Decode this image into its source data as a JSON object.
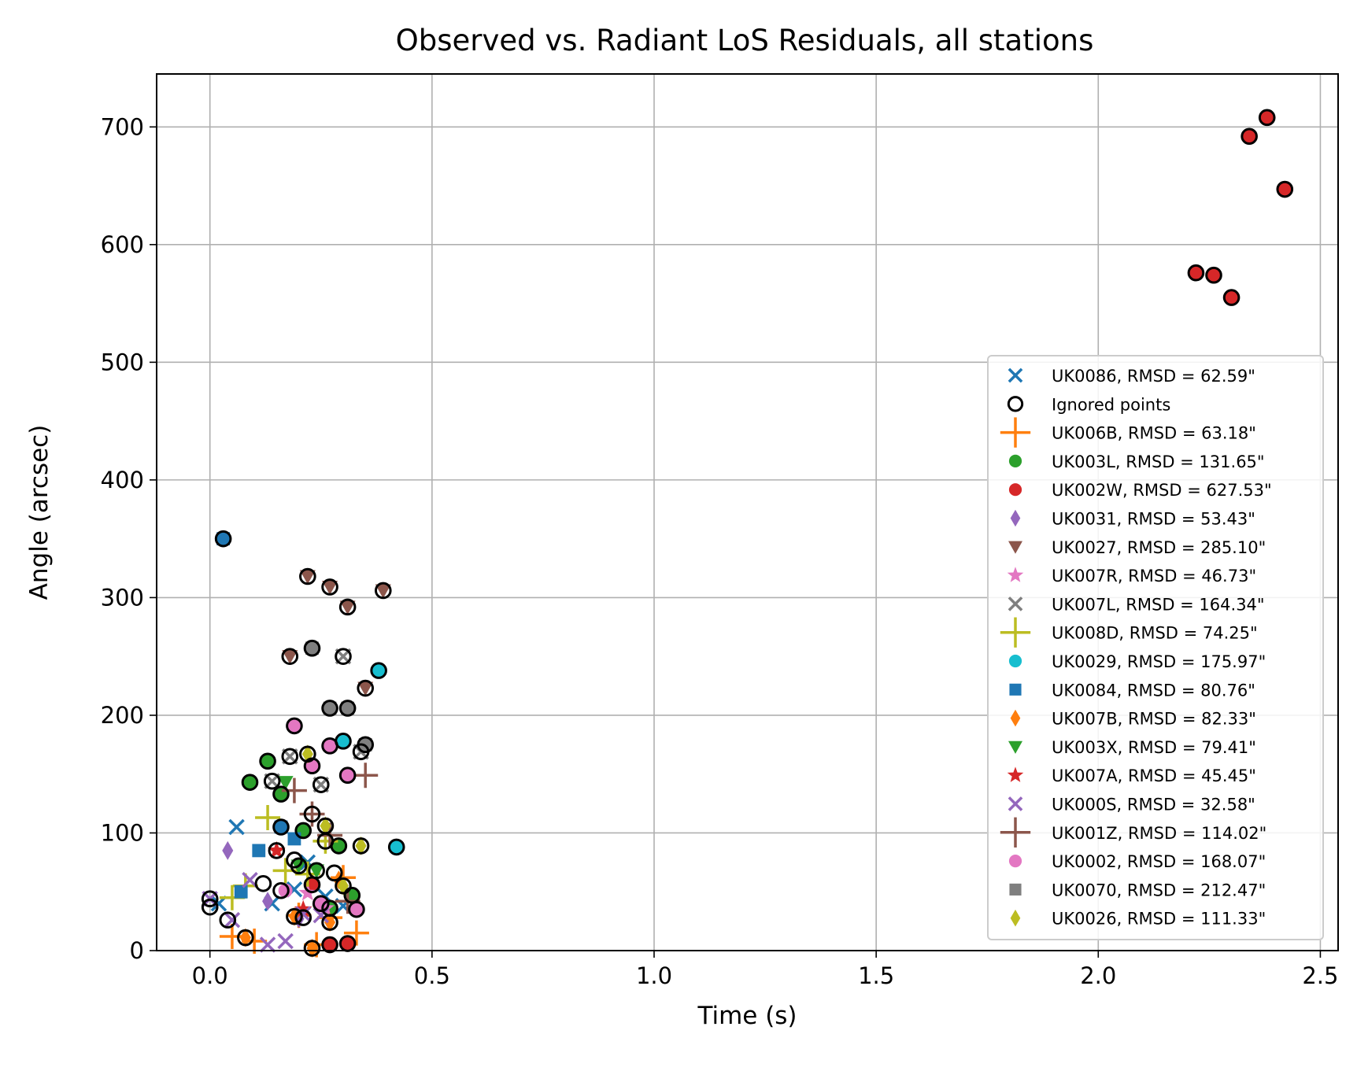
{
  "chart_data": {
    "type": "scatter",
    "title": "Observed vs. Radiant LoS Residuals, all stations",
    "xlabel": "Time (s)",
    "ylabel": "Angle (arcsec)",
    "xlim": [
      -0.12,
      2.54
    ],
    "ylim": [
      0,
      745
    ],
    "xticks": [
      0.0,
      0.5,
      1.0,
      1.5,
      2.0,
      2.5
    ],
    "xtick_labels": [
      "0.0",
      "0.5",
      "1.0",
      "1.5",
      "2.0",
      "2.5"
    ],
    "yticks": [
      0,
      100,
      200,
      300,
      400,
      500,
      600,
      700
    ],
    "ytick_labels": [
      "0",
      "100",
      "200",
      "300",
      "400",
      "500",
      "600",
      "700"
    ],
    "grid": true,
    "legend_position": "lower-right",
    "series": [
      {
        "name": "UK0086, RMSD = 62.59\"",
        "marker": "x",
        "color": "#1f77b4",
        "points": [
          [
            0.02,
            40
          ],
          [
            0.06,
            105
          ],
          [
            0.14,
            40
          ],
          [
            0.19,
            52
          ],
          [
            0.22,
            75
          ],
          [
            0.26,
            46
          ],
          [
            0.3,
            38
          ]
        ]
      },
      {
        "name": "UK006B, RMSD = 63.18\"",
        "marker": "plus",
        "color": "#ff7f0e",
        "points": [
          [
            0.05,
            12
          ],
          [
            0.1,
            8
          ],
          [
            0.2,
            30
          ],
          [
            0.24,
            5
          ],
          [
            0.27,
            28
          ],
          [
            0.3,
            62
          ],
          [
            0.33,
            15
          ]
        ]
      },
      {
        "name": "UK003L, RMSD = 131.65\"",
        "marker": "circle",
        "color": "#2ca02c",
        "points": [
          [
            0.09,
            143
          ],
          [
            0.13,
            161
          ],
          [
            0.16,
            133
          ],
          [
            0.21,
            102
          ],
          [
            0.27,
            36
          ],
          [
            0.29,
            89
          ],
          [
            0.32,
            47
          ]
        ]
      },
      {
        "name": "UK002W, RMSD = 627.53\"",
        "marker": "circle",
        "color": "#d62728",
        "points": [
          [
            2.22,
            576
          ],
          [
            2.26,
            574
          ],
          [
            2.3,
            555
          ],
          [
            2.34,
            692
          ],
          [
            2.38,
            708
          ],
          [
            2.42,
            647
          ],
          [
            0.23,
            56
          ],
          [
            0.27,
            5
          ],
          [
            0.31,
            6
          ]
        ]
      },
      {
        "name": "UK0031, RMSD = 53.43\"",
        "marker": "diamond",
        "color": "#9467bd",
        "points": [
          [
            0.04,
            85
          ],
          [
            0.13,
            42
          ],
          [
            0.2,
            27
          ]
        ]
      },
      {
        "name": "UK0027, RMSD = 285.10\"",
        "marker": "triangle-down",
        "color": "#8c564b",
        "points": [
          [
            0.18,
            250
          ],
          [
            0.22,
            318
          ],
          [
            0.27,
            309
          ],
          [
            0.31,
            292
          ],
          [
            0.35,
            223
          ],
          [
            0.39,
            306
          ]
        ]
      },
      {
        "name": "UK007R, RMSD = 46.73\"",
        "marker": "star",
        "color": "#e377c2",
        "points": [
          [
            0.22,
            49
          ],
          [
            0.26,
            36
          ]
        ]
      },
      {
        "name": "UK007L, RMSD = 164.34\"",
        "marker": "x",
        "color": "#7f7f7f",
        "points": [
          [
            0.14,
            144
          ],
          [
            0.18,
            165
          ],
          [
            0.25,
            141
          ],
          [
            0.3,
            250
          ],
          [
            0.34,
            169
          ]
        ]
      },
      {
        "name": "UK008D, RMSD = 74.25\"",
        "marker": "plus",
        "color": "#bcbd22",
        "points": [
          [
            0.05,
            45
          ],
          [
            0.08,
            55
          ],
          [
            0.13,
            113
          ],
          [
            0.17,
            68
          ],
          [
            0.22,
            65
          ],
          [
            0.26,
            93
          ]
        ]
      },
      {
        "name": "UK0029, RMSD = 175.97\"",
        "marker": "circle",
        "color": "#17becf",
        "points": [
          [
            0.3,
            178
          ],
          [
            0.38,
            238
          ],
          [
            0.42,
            88
          ]
        ]
      },
      {
        "name": "UK0084, RMSD = 80.76\"",
        "marker": "square",
        "color": "#1f77b4",
        "points": [
          [
            0.03,
            350
          ],
          [
            0.07,
            50
          ],
          [
            0.11,
            85
          ],
          [
            0.19,
            95
          ],
          [
            0.16,
            105
          ]
        ]
      },
      {
        "name": "UK007B, RMSD = 82.33\"",
        "marker": "diamond",
        "color": "#ff7f0e",
        "points": [
          [
            0.08,
            11
          ],
          [
            0.19,
            29
          ],
          [
            0.23,
            2
          ],
          [
            0.27,
            24
          ],
          [
            0.29,
            60
          ]
        ]
      },
      {
        "name": "UK003X, RMSD = 79.41\"",
        "marker": "triangle-down",
        "color": "#2ca02c",
        "points": [
          [
            0.17,
            143
          ],
          [
            0.2,
            72
          ],
          [
            0.24,
            68
          ]
        ]
      },
      {
        "name": "UK007A, RMSD = 45.45\"",
        "marker": "star",
        "color": "#d62728",
        "points": [
          [
            0.15,
            85
          ],
          [
            0.21,
            35
          ]
        ]
      },
      {
        "name": "UK000S, RMSD = 32.58\"",
        "marker": "x",
        "color": "#9467bd",
        "points": [
          [
            0.0,
            44
          ],
          [
            0.05,
            26
          ],
          [
            0.09,
            60
          ],
          [
            0.13,
            5
          ],
          [
            0.17,
            8
          ],
          [
            0.21,
            31
          ],
          [
            0.25,
            30
          ]
        ]
      },
      {
        "name": "UK001Z, RMSD = 114.02\"",
        "marker": "plus",
        "color": "#8c564b",
        "points": [
          [
            0.19,
            136
          ],
          [
            0.23,
            116
          ],
          [
            0.27,
            98
          ],
          [
            0.31,
            42
          ],
          [
            0.35,
            149
          ]
        ]
      },
      {
        "name": "UK0002, RMSD = 168.07\"",
        "marker": "circle",
        "color": "#e377c2",
        "points": [
          [
            0.19,
            191
          ],
          [
            0.23,
            157
          ],
          [
            0.27,
            174
          ],
          [
            0.31,
            149
          ],
          [
            0.17,
            51
          ],
          [
            0.25,
            40
          ],
          [
            0.33,
            35
          ]
        ]
      },
      {
        "name": "UK0070, RMSD = 212.47\"",
        "marker": "square",
        "color": "#7f7f7f",
        "points": [
          [
            0.23,
            257
          ],
          [
            0.27,
            206
          ],
          [
            0.31,
            206
          ],
          [
            0.35,
            175
          ]
        ]
      },
      {
        "name": "UK0026, RMSD = 111.33\"",
        "marker": "diamond",
        "color": "#bcbd22",
        "points": [
          [
            0.22,
            167
          ],
          [
            0.26,
            106
          ],
          [
            0.3,
            55
          ],
          [
            0.34,
            89
          ]
        ]
      }
    ],
    "ignored": {
      "name": "Ignored points",
      "marker": "circle-open",
      "color": "#000000",
      "points": [
        [
          0.0,
          44
        ],
        [
          0.0,
          37
        ],
        [
          0.04,
          26
        ],
        [
          0.08,
          11
        ],
        [
          0.12,
          57
        ],
        [
          0.16,
          51
        ],
        [
          0.19,
          29
        ],
        [
          0.23,
          2
        ],
        [
          0.27,
          24
        ],
        [
          0.31,
          6
        ],
        [
          0.09,
          143
        ],
        [
          0.13,
          161
        ],
        [
          0.16,
          133
        ],
        [
          0.21,
          102
        ],
        [
          0.27,
          36
        ],
        [
          0.29,
          89
        ],
        [
          0.32,
          47
        ],
        [
          0.14,
          144
        ],
        [
          0.18,
          165
        ],
        [
          0.25,
          141
        ],
        [
          0.3,
          250
        ],
        [
          0.34,
          169
        ],
        [
          0.18,
          250
        ],
        [
          0.22,
          318
        ],
        [
          0.27,
          309
        ],
        [
          0.31,
          292
        ],
        [
          0.35,
          223
        ],
        [
          0.39,
          306
        ],
        [
          0.19,
          191
        ],
        [
          0.23,
          157
        ],
        [
          0.27,
          174
        ],
        [
          0.31,
          149
        ],
        [
          0.25,
          40
        ],
        [
          0.33,
          35
        ],
        [
          0.23,
          257
        ],
        [
          0.27,
          206
        ],
        [
          0.31,
          206
        ],
        [
          0.35,
          175
        ],
        [
          0.22,
          167
        ],
        [
          0.26,
          106
        ],
        [
          0.3,
          55
        ],
        [
          0.34,
          89
        ],
        [
          0.26,
          93
        ],
        [
          0.28,
          66
        ],
        [
          0.2,
          72
        ],
        [
          0.24,
          68
        ],
        [
          0.03,
          350
        ],
        [
          0.16,
          105
        ],
        [
          0.3,
          178
        ],
        [
          0.38,
          238
        ],
        [
          0.42,
          88
        ],
        [
          0.15,
          85
        ],
        [
          0.23,
          56
        ],
        [
          0.27,
          5
        ],
        [
          2.22,
          576
        ],
        [
          2.26,
          574
        ],
        [
          2.3,
          555
        ],
        [
          2.34,
          692
        ],
        [
          2.38,
          708
        ],
        [
          2.42,
          647
        ],
        [
          0.19,
          77
        ],
        [
          0.21,
          28
        ],
        [
          0.23,
          116
        ]
      ]
    },
    "legend_order": [
      "UK0086, RMSD = 62.59\"",
      "Ignored points",
      "UK006B, RMSD = 63.18\"",
      "UK003L, RMSD = 131.65\"",
      "UK002W, RMSD = 627.53\"",
      "UK0031, RMSD = 53.43\"",
      "UK0027, RMSD = 285.10\"",
      "UK007R, RMSD = 46.73\"",
      "UK007L, RMSD = 164.34\"",
      "UK008D, RMSD = 74.25\"",
      "UK0029, RMSD = 175.97\"",
      "UK0084, RMSD = 80.76\"",
      "UK007B, RMSD = 82.33\"",
      "UK003X, RMSD = 79.41\"",
      "UK007A, RMSD = 45.45\"",
      "UK000S, RMSD = 32.58\"",
      "UK001Z, RMSD = 114.02\"",
      "UK0002, RMSD = 168.07\"",
      "UK0070, RMSD = 212.47\"",
      "UK0026, RMSD = 111.33\""
    ]
  }
}
